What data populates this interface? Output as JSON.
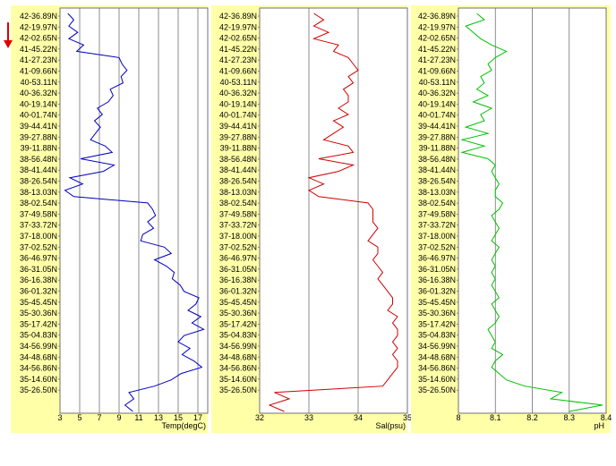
{
  "chart_data": [
    {
      "type": "line",
      "xlabel": "Temp(degC)",
      "xlim": [
        3,
        18
      ],
      "xticks": [
        "3",
        "5",
        "7",
        "9",
        "11",
        "13",
        "15",
        "17"
      ],
      "series_color": "#0000c0",
      "ytick_labels": [
        "42-36.89N",
        "42-19.97N",
        "42-02.65N",
        "41-45.22N",
        "41-27.23N",
        "41-09.66N",
        "40-53.11N",
        "40-36.32N",
        "40-19.14N",
        "40-01.74N",
        "39-44.41N",
        "39-27.88N",
        "39-11.88N",
        "38-56.48N",
        "38-41.44N",
        "38-26.54N",
        "38-13.03N",
        "38-02.54N",
        "37-49.58N",
        "37-33.72N",
        "37-18.00N",
        "37-02.52N",
        "36-46.97N",
        "36-31.05N",
        "36-16.38N",
        "36-01.32N",
        "35-45.45N",
        "35-30.36N",
        "35-17.42N",
        "35-04.83N",
        "34-56.99N",
        "34-48.68N",
        "34-56.86N",
        "35-14.60N",
        "35-26.50N"
      ],
      "values": [
        3.8,
        4.4,
        3.9,
        4.8,
        3.9,
        5.4,
        4.7,
        9.0,
        9.3,
        9.8,
        9.2,
        9.4,
        8.1,
        8.4,
        7.9,
        6.8,
        7.3,
        6.5,
        7.1,
        6.6,
        6.1,
        7.6,
        8.3,
        5.1,
        8.5,
        7.4,
        4.0,
        5.3,
        3.5,
        4.4,
        11.9,
        12.4,
        12.7,
        11.9,
        12.5,
        11.4,
        11.2,
        13.6,
        14.3,
        12.6,
        13.8,
        14.6,
        14.4,
        15.2,
        15.6,
        17.1,
        16.8,
        16.0,
        17.3,
        16.4,
        17.6,
        15.6,
        15.0,
        16.2,
        15.4,
        16.6,
        17.4,
        15.3,
        14.3,
        12.6,
        10.0,
        10.5,
        9.6,
        10.4
      ]
    },
    {
      "type": "line",
      "xlabel": "Sal(psu)",
      "xlim": [
        32,
        35
      ],
      "xticks": [
        "32",
        "33",
        "34",
        "35"
      ],
      "series_color": "#d00000",
      "ytick_labels": [
        "42-36.89N",
        "42-19.97N",
        "42-02.65N",
        "41-45.22N",
        "41-27.23N",
        "41-09.66N",
        "40-53.11N",
        "40-36.32N",
        "40-19.14N",
        "40-01.74N",
        "39-44.41N",
        "39-27.88N",
        "39-11.88N",
        "38-56.48N",
        "38-41.44N",
        "38-26.54N",
        "38-13.03N",
        "38-02.54N",
        "37-49.58N",
        "37-33.72N",
        "37-18.00N",
        "37-02.52N",
        "36-46.97N",
        "36-31.05N",
        "36-16.38N",
        "36-01.32N",
        "35-45.45N",
        "35-30.36N",
        "35-17.42N",
        "35-04.83N",
        "34-56.99N",
        "34-48.68N",
        "34-56.86N",
        "35-14.60N",
        "35-26.50N"
      ],
      "values": [
        33.1,
        33.3,
        33.1,
        33.4,
        33.1,
        33.6,
        33.5,
        33.8,
        33.9,
        34.0,
        33.8,
        33.9,
        33.7,
        33.8,
        33.8,
        33.6,
        33.8,
        33.5,
        33.7,
        33.5,
        33.3,
        33.8,
        33.9,
        33.2,
        33.9,
        33.6,
        33.0,
        33.3,
        33.0,
        33.2,
        34.2,
        34.3,
        34.3,
        34.3,
        34.4,
        34.3,
        34.2,
        34.4,
        34.4,
        34.3,
        34.4,
        34.5,
        34.4,
        34.5,
        34.6,
        34.7,
        34.7,
        34.6,
        34.8,
        34.7,
        34.8,
        34.8,
        34.7,
        34.8,
        34.7,
        34.8,
        34.8,
        34.7,
        34.6,
        34.5,
        32.3,
        32.6,
        32.2,
        32.5
      ]
    },
    {
      "type": "line",
      "xlabel": "pH",
      "xlim": [
        8,
        8.4
      ],
      "xticks": [
        "8",
        "8.1",
        "8.2",
        "8.3",
        "8.4"
      ],
      "series_color": "#00c000",
      "ytick_labels": [
        "42-36.89N",
        "42-19.97N",
        "42-02.65N",
        "41-45.22N",
        "41-27.23N",
        "41-09.66N",
        "40-53.11N",
        "40-36.32N",
        "40-19.14N",
        "40-01.74N",
        "39-44.41N",
        "39-27.88N",
        "39-11.88N",
        "38-56.48N",
        "38-41.44N",
        "38-26.54N",
        "38-13.03N",
        "38-02.54N",
        "37-49.58N",
        "37-33.72N",
        "37-18.00N",
        "37-02.52N",
        "36-46.97N",
        "36-31.05N",
        "36-16.38N",
        "36-01.32N",
        "35-45.45N",
        "35-30.36N",
        "35-17.42N",
        "35-04.83N",
        "34-56.99N",
        "34-48.68N",
        "34-56.86N",
        "35-14.60N",
        "35-26.50N"
      ],
      "values": [
        8.05,
        8.07,
        8.02,
        8.04,
        8.06,
        8.09,
        8.13,
        8.1,
        8.08,
        8.09,
        8.06,
        8.07,
        8.05,
        8.08,
        8.04,
        8.09,
        8.06,
        8.07,
        8.02,
        8.08,
        8.01,
        8.07,
        8.01,
        8.08,
        8.1,
        8.09,
        8.1,
        8.11,
        8.1,
        8.1,
        8.12,
        8.11,
        8.09,
        8.1,
        8.11,
        8.1,
        8.09,
        8.11,
        8.1,
        8.09,
        8.1,
        8.09,
        8.1,
        8.09,
        8.1,
        8.11,
        8.09,
        8.1,
        8.11,
        8.1,
        8.08,
        8.09,
        8.1,
        8.09,
        8.12,
        8.1,
        8.09,
        8.11,
        8.13,
        8.18,
        8.28,
        8.25,
        8.39,
        8.3
      ]
    }
  ]
}
